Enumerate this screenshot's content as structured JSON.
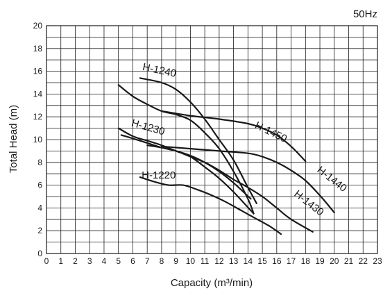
{
  "chart_data": {
    "type": "line",
    "frequency_label": "50Hz",
    "xlabel": "Capacity (m³/min)",
    "ylabel": "Total Head (m)",
    "xlim": [
      0,
      23
    ],
    "ylim": [
      0,
      20
    ],
    "x_ticks": [
      0,
      1,
      2,
      3,
      4,
      5,
      6,
      7,
      8,
      9,
      10,
      11,
      12,
      13,
      14,
      15,
      16,
      17,
      18,
      19,
      20,
      21,
      22,
      23
    ],
    "y_ticks": [
      0,
      2,
      4,
      6,
      8,
      10,
      12,
      14,
      16,
      18,
      20
    ],
    "grid": "on",
    "series": [
      {
        "name": "H-1240",
        "curves": [
          [
            [
              6.5,
              15.4
            ],
            [
              8,
              15.0
            ],
            [
              9,
              14.4
            ],
            [
              10,
              13.3
            ],
            [
              11,
              11.8
            ],
            [
              12,
              10.0
            ],
            [
              13,
              8.2
            ],
            [
              14,
              5.8
            ],
            [
              14.6,
              4.4
            ]
          ],
          [
            [
              5,
              14.8
            ],
            [
              6,
              13.8
            ],
            [
              7,
              13.1
            ],
            [
              8,
              12.5
            ],
            [
              9,
              12.2
            ],
            [
              10,
              11.7
            ],
            [
              11,
              10.6
            ],
            [
              12,
              9.2
            ],
            [
              13,
              7.2
            ],
            [
              14,
              4.8
            ],
            [
              14.4,
              3.5
            ]
          ]
        ]
      },
      {
        "name": "H-1450",
        "curves": [
          [
            [
              8,
              12.5
            ],
            [
              10,
              12.1
            ],
            [
              12,
              11.8
            ],
            [
              14,
              11.4
            ],
            [
              15,
              11.0
            ],
            [
              16,
              10.4
            ],
            [
              17,
              9.4
            ],
            [
              18,
              8.1
            ]
          ]
        ]
      },
      {
        "name": "H-1230",
        "curves": [
          [
            [
              5,
              11.0
            ],
            [
              6,
              10.3
            ],
            [
              7,
              9.9
            ],
            [
              8,
              9.5
            ],
            [
              9,
              9.0
            ],
            [
              10,
              8.5
            ],
            [
              11,
              7.6
            ],
            [
              12,
              6.6
            ],
            [
              13,
              5.4
            ],
            [
              14.4,
              3.5
            ]
          ],
          [
            [
              5.2,
              10.4
            ],
            [
              6,
              10.1
            ],
            [
              7,
              9.7
            ],
            [
              8,
              9.3
            ],
            [
              9,
              9.0
            ],
            [
              10,
              8.6
            ],
            [
              11,
              8.0
            ],
            [
              12,
              7.2
            ],
            [
              13,
              6.2
            ],
            [
              14.2,
              4.8
            ]
          ]
        ]
      },
      {
        "name": "H-1440",
        "curves": [
          [
            [
              8,
              9.4
            ],
            [
              10,
              9.2
            ],
            [
              12,
              9.0
            ],
            [
              14,
              8.8
            ],
            [
              15,
              8.5
            ],
            [
              16,
              8.0
            ],
            [
              17,
              7.3
            ],
            [
              18,
              6.4
            ],
            [
              19,
              5.1
            ],
            [
              20,
              3.6
            ]
          ]
        ]
      },
      {
        "name": "H-1430",
        "curves": [
          [
            [
              7,
              9.5
            ],
            [
              8,
              9.3
            ],
            [
              9,
              9.0
            ],
            [
              10,
              8.5
            ],
            [
              11,
              8.0
            ],
            [
              12,
              7.3
            ],
            [
              13,
              6.5
            ],
            [
              14,
              5.8
            ],
            [
              15,
              5.0
            ],
            [
              16,
              4.0
            ],
            [
              17,
              3.0
            ],
            [
              18.5,
              1.9
            ]
          ]
        ]
      },
      {
        "name": "H-1220",
        "curves": [
          [
            [
              6.5,
              6.7
            ],
            [
              7.5,
              6.3
            ],
            [
              8.5,
              6.0
            ],
            [
              9.5,
              6.0
            ],
            [
              10.5,
              5.6
            ],
            [
              11.5,
              5.1
            ],
            [
              12.5,
              4.5
            ],
            [
              13.5,
              3.8
            ],
            [
              14.5,
              3.1
            ],
            [
              15.5,
              2.4
            ],
            [
              16.3,
              1.7
            ]
          ]
        ]
      }
    ],
    "labels": [
      {
        "text": "H-1240",
        "at": [
          7.8,
          15.8
        ],
        "angle": 12
      },
      {
        "text": "H-1450",
        "at": [
          15.5,
          10.4
        ],
        "angle": 26
      },
      {
        "text": "H-1230",
        "at": [
          7.0,
          10.8
        ],
        "angle": 16
      },
      {
        "text": "H-1440",
        "at": [
          19.7,
          6.3
        ],
        "angle": 38
      },
      {
        "text": "H-1430",
        "at": [
          18.1,
          4.2
        ],
        "angle": 38
      },
      {
        "text": "H-1220",
        "at": [
          7.8,
          6.6
        ],
        "angle": 0
      }
    ]
  }
}
